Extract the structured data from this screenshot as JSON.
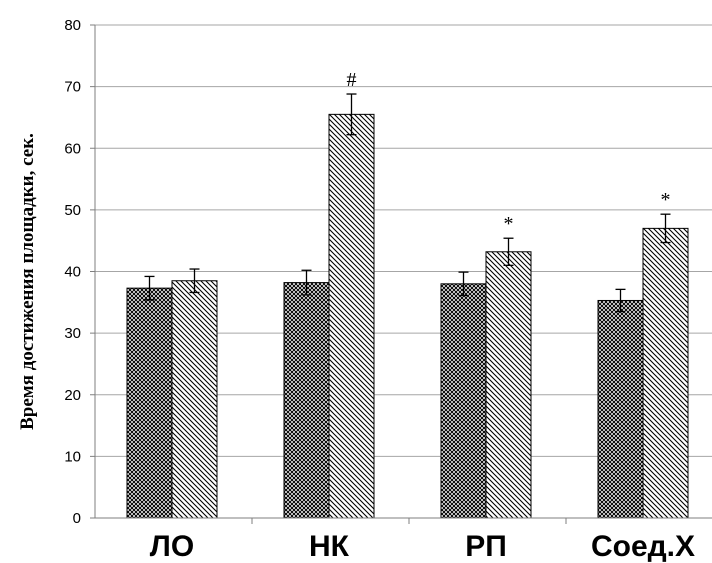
{
  "chart_data": {
    "type": "bar",
    "ylabel": "Время достижения площадки, сек.",
    "xlabel": "",
    "ylim": [
      0,
      80
    ],
    "yticks": [
      0,
      10,
      20,
      30,
      40,
      50,
      60,
      70,
      80
    ],
    "grid": true,
    "categories": [
      "ЛО",
      "НК",
      "РП",
      "Соед.Х"
    ],
    "series": [
      {
        "pattern": "crosshatch",
        "values": [
          37.3,
          38.2,
          38,
          35.3
        ],
        "errors": [
          1.9,
          2,
          1.9,
          1.8
        ],
        "annotations": [
          "",
          "",
          "",
          ""
        ]
      },
      {
        "pattern": "diagonal",
        "values": [
          38.5,
          65.5,
          43.2,
          47
        ],
        "errors": [
          1.9,
          3.3,
          2.2,
          2.3
        ],
        "annotations": [
          "",
          "#",
          "*",
          "*"
        ]
      }
    ],
    "colors": {
      "grid": "#a6a6a6",
      "axis": "#7f7f7f",
      "bar_fill": "#ffffff",
      "hatch": "#000000"
    }
  }
}
